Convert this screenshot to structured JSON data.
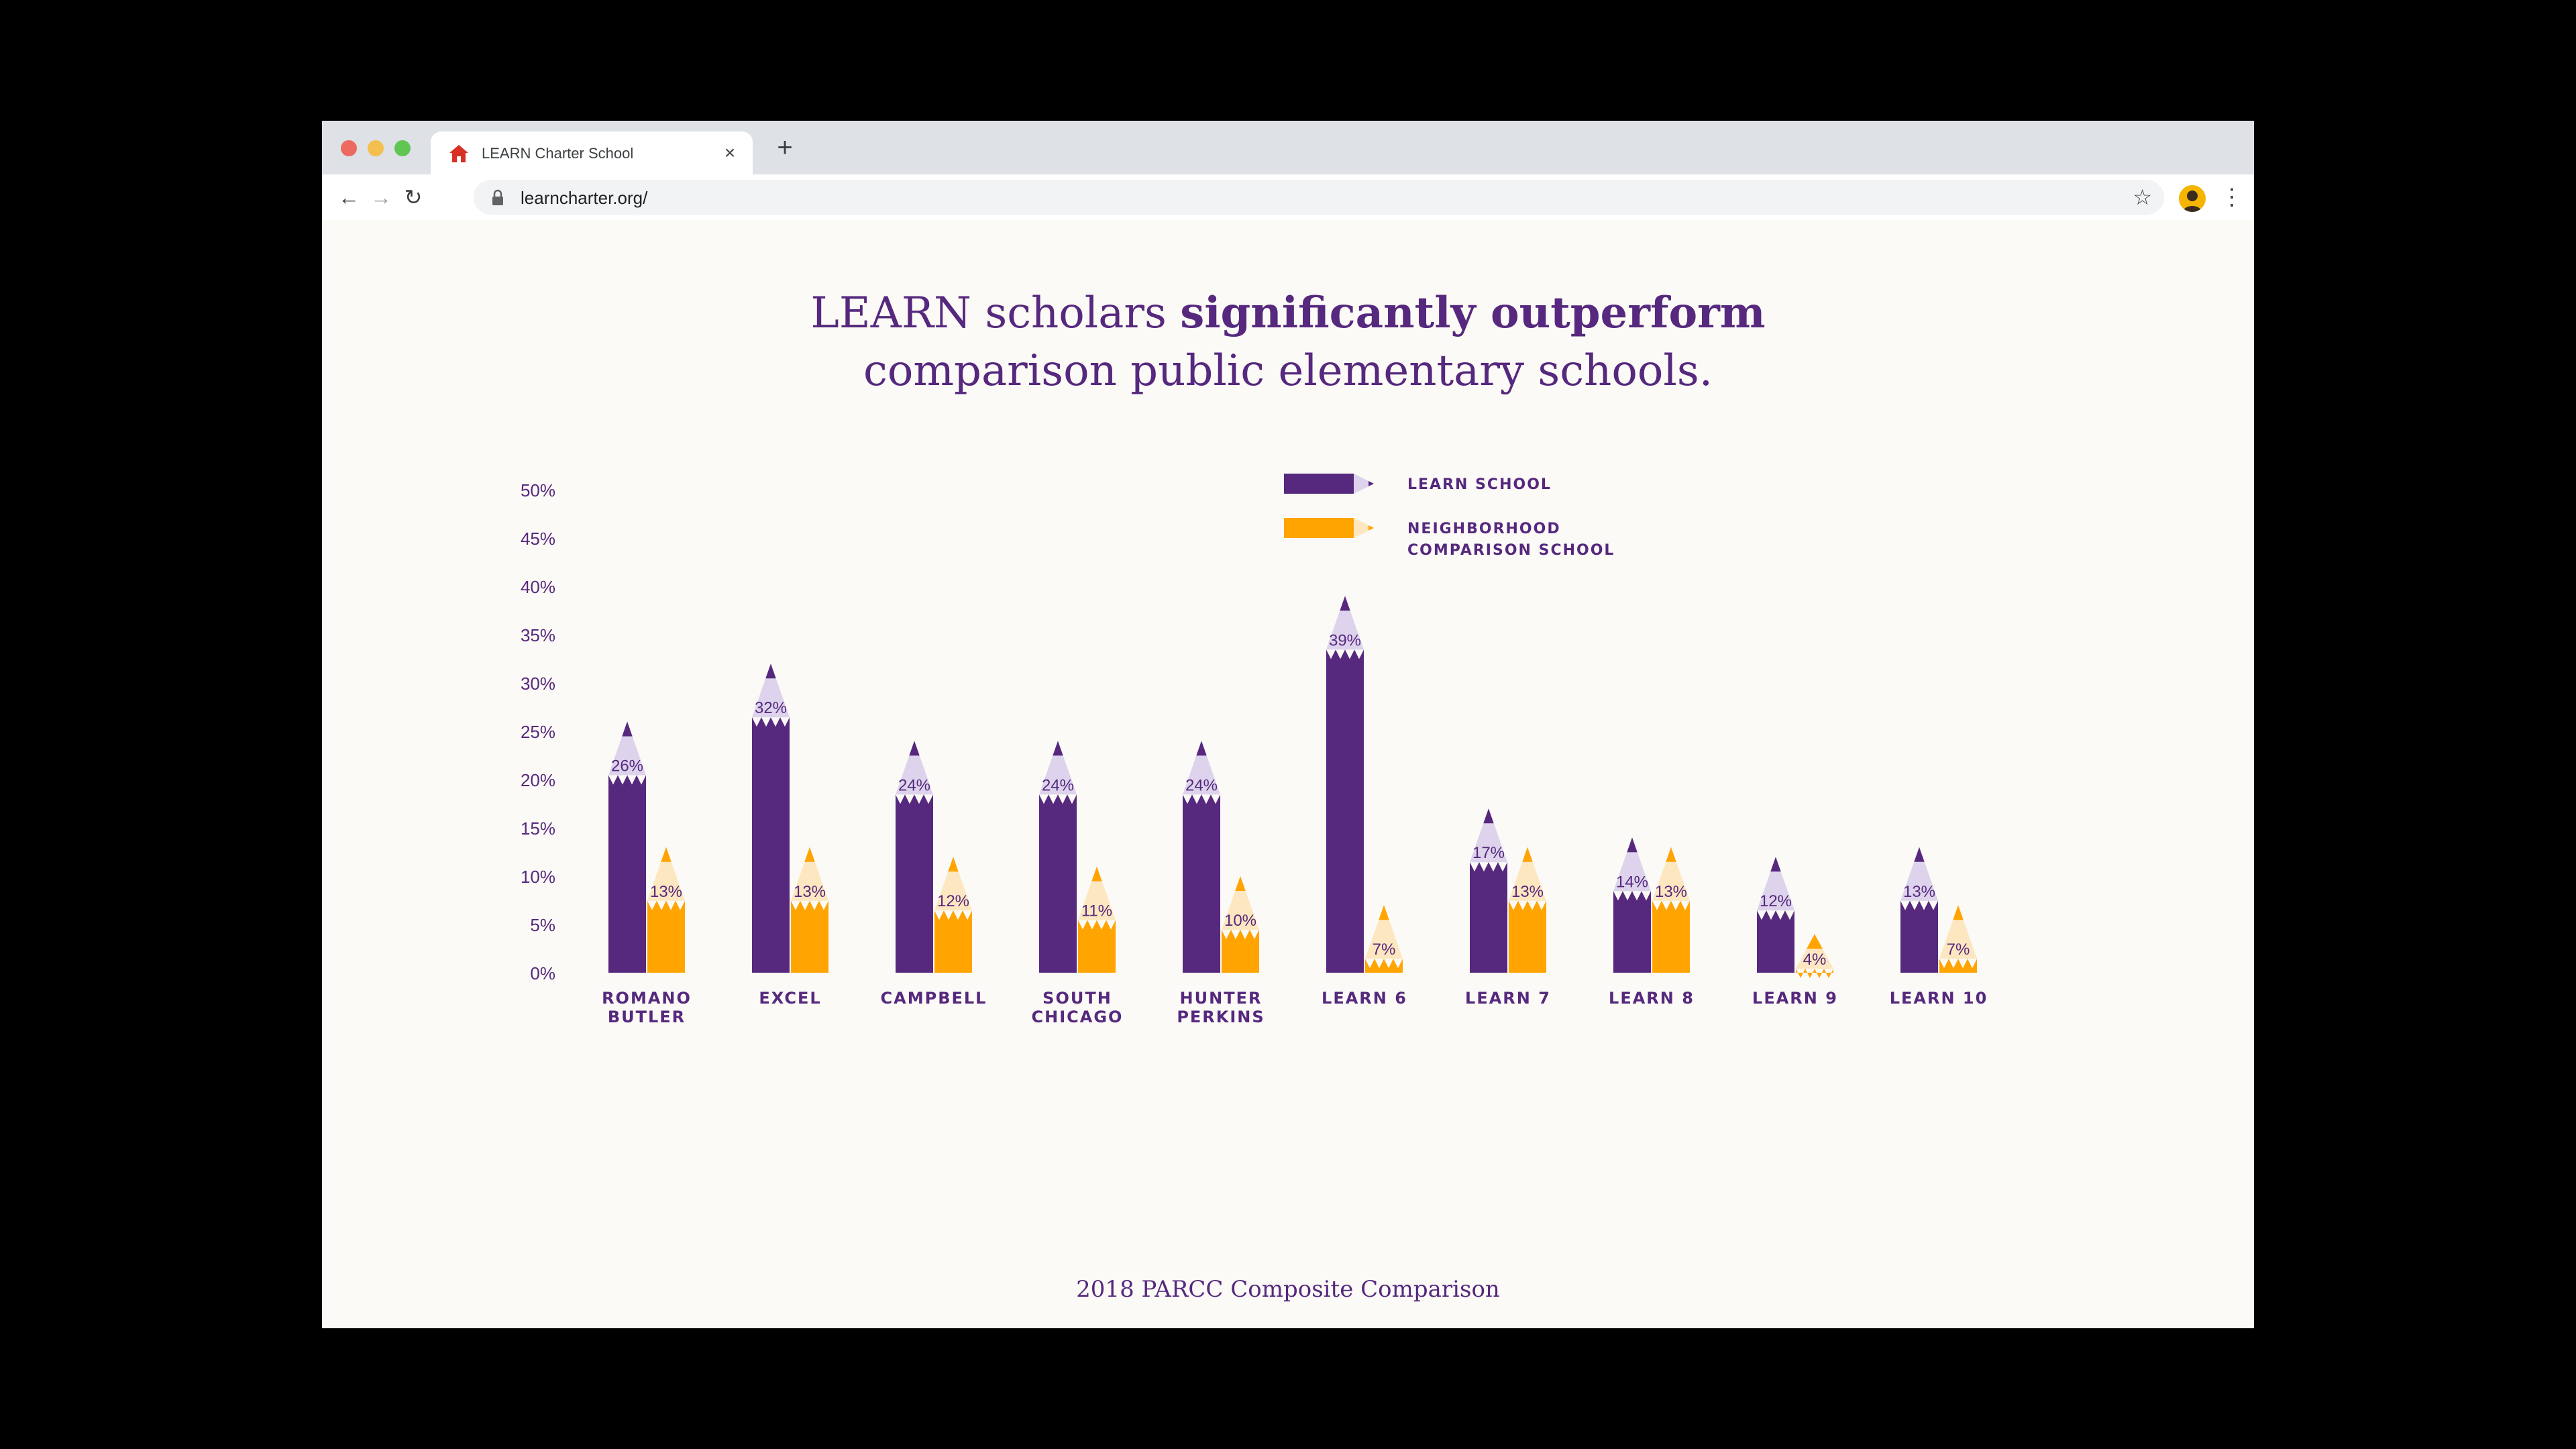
{
  "browser": {
    "tab_title": "LEARN Charter School",
    "new_tab_label": "+",
    "close_tab_label": "×",
    "url": "learncharter.org/",
    "back_label": "←",
    "forward_label": "→",
    "reload_label": "↻",
    "bookmark_label": "☆",
    "menu_label": "⋮",
    "favicon_color": "#d93025"
  },
  "page": {
    "headline_part1": "LEARN scholars ",
    "headline_bold": "significantly outperform",
    "headline_line2": "comparison public elementary schools.",
    "caption": "2018 PARCC Composite Comparison"
  },
  "colors": {
    "learn": "#56287e",
    "learn_tip": "#ddd3ec",
    "neighborhood": "#ffa400",
    "neighborhood_tip": "#fde7c0",
    "text": "#56287e"
  },
  "chart_data": {
    "type": "bar",
    "categories": [
      [
        "ROMANO",
        "BUTLER"
      ],
      [
        "EXCEL"
      ],
      [
        "CAMPBELL"
      ],
      [
        "SOUTH",
        "CHICAGO"
      ],
      [
        "HUNTER",
        "PERKINS"
      ],
      [
        "LEARN 6"
      ],
      [
        "LEARN 7"
      ],
      [
        "LEARN 8"
      ],
      [
        "LEARN 9"
      ],
      [
        "LEARN 10"
      ]
    ],
    "series": [
      {
        "name": "LEARN SCHOOL",
        "values": [
          26,
          32,
          24,
          24,
          24,
          39,
          17,
          14,
          12,
          13
        ]
      },
      {
        "name": "NEIGHBORHOOD COMPARISON SCHOOL",
        "values": [
          13,
          13,
          12,
          11,
          10,
          7,
          13,
          13,
          4,
          7
        ]
      }
    ],
    "legend_lines": [
      [
        "LEARN SCHOOL"
      ],
      [
        "NEIGHBORHOOD",
        "COMPARISON SCHOOL"
      ]
    ],
    "yticks": [
      "0%",
      "5%",
      "10%",
      "15%",
      "20%",
      "25%",
      "30%",
      "35%",
      "40%",
      "45%",
      "50%"
    ],
    "ylim": [
      0,
      50
    ],
    "value_suffix": "%",
    "legend_position": "top-right",
    "grid": false
  }
}
